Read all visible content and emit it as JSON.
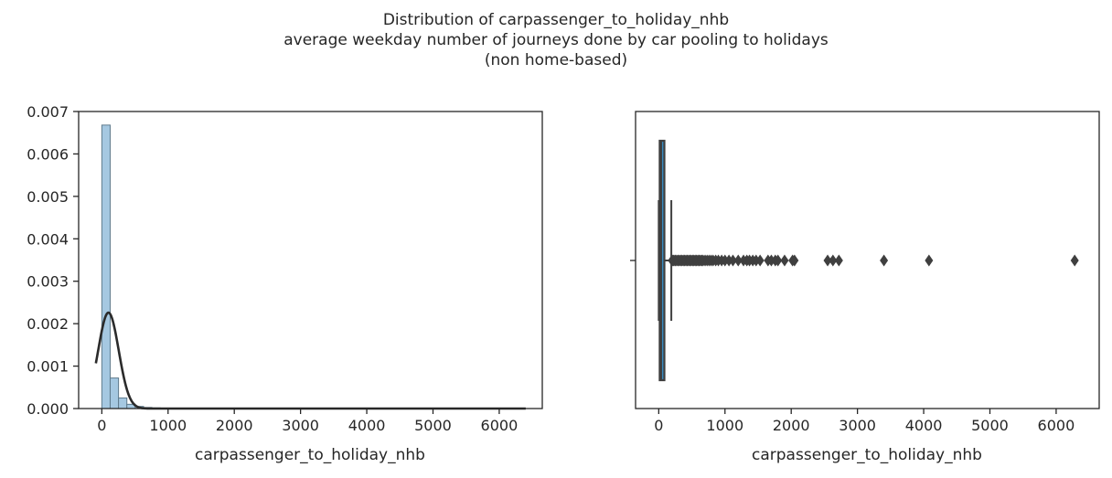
{
  "title_lines": [
    "Distribution of carpassenger_to_holiday_nhb",
    "average weekday number of journeys done by car pooling to holidays",
    "(non home-based)"
  ],
  "chart_data": [
    {
      "type": "bar",
      "subtype": "histogram_with_kde",
      "xlabel": "carpassenger_to_holiday_nhb",
      "ylabel": "",
      "xlim": [
        -350,
        6650
      ],
      "ylim": [
        0,
        0.007
      ],
      "xticks": [
        0,
        1000,
        2000,
        3000,
        4000,
        5000,
        6000
      ],
      "yticks": [
        "0.000",
        "0.001",
        "0.002",
        "0.003",
        "0.004",
        "0.005",
        "0.006",
        "0.007"
      ],
      "bins": {
        "edges": [
          0,
          126,
          252,
          378,
          504,
          630,
          756,
          882,
          1008,
          1134,
          1260,
          1386,
          1512,
          1638,
          1764,
          1890,
          2016,
          2142,
          2268,
          2394,
          2520,
          2646,
          2772,
          2898,
          3024,
          3150,
          3276,
          3402,
          3528,
          3654,
          3780,
          3906,
          4032,
          4158,
          4284,
          4410,
          4536,
          4662,
          4788,
          4914,
          5040,
          5166,
          5292,
          5418,
          5544,
          5670,
          5796,
          5922,
          6048,
          6174,
          6300
        ],
        "density": [
          0.00668,
          0.00072,
          0.00025,
          0.0001,
          5e-05,
          2.5e-05,
          1.5e-05,
          1e-05,
          7e-06,
          5e-06,
          4e-06,
          3e-06,
          2e-06,
          2e-06,
          1.5e-06,
          1e-06,
          1e-06,
          0,
          0,
          8e-07,
          6e-07,
          4e-07,
          0,
          0,
          0,
          0,
          3e-07,
          0,
          0,
          0,
          0,
          3e-07,
          0,
          0,
          0,
          0,
          0,
          0,
          0,
          0,
          0,
          0,
          0,
          0,
          0,
          0,
          0,
          0,
          0,
          2e-07
        ]
      },
      "kde": {
        "peak_x": 100,
        "peak_y": 0.00226,
        "sigma": 155,
        "x_range": [
          -90,
          6400
        ]
      },
      "colors": {
        "bar": "#a5c8e1",
        "bar_edge": "#5f7a8c",
        "kde": "#2b2b2b"
      }
    },
    {
      "type": "boxplot",
      "xlabel": "carpassenger_to_holiday_nhb",
      "ylabel": "",
      "xlim": [
        -350,
        6650
      ],
      "xticks": [
        0,
        1000,
        2000,
        3000,
        4000,
        5000,
        6000
      ],
      "box": {
        "whisker_low": 0,
        "q1": 15,
        "median": 35,
        "q3": 85,
        "whisker_high": 190
      },
      "outliers": [
        200,
        215,
        230,
        250,
        270,
        290,
        310,
        330,
        350,
        370,
        390,
        410,
        430,
        450,
        470,
        490,
        510,
        530,
        550,
        570,
        590,
        610,
        630,
        650,
        670,
        700,
        730,
        760,
        790,
        820,
        860,
        900,
        950,
        1000,
        1060,
        1120,
        1200,
        1280,
        1330,
        1370,
        1420,
        1470,
        1530,
        1650,
        1700,
        1760,
        1800,
        1900,
        2020,
        2050,
        2550,
        2630,
        2720,
        3400,
        4080,
        6280
      ],
      "colors": {
        "box": "#3a8bbf",
        "line": "#3f3f3f",
        "outlier": "#3f3f3f"
      }
    }
  ]
}
